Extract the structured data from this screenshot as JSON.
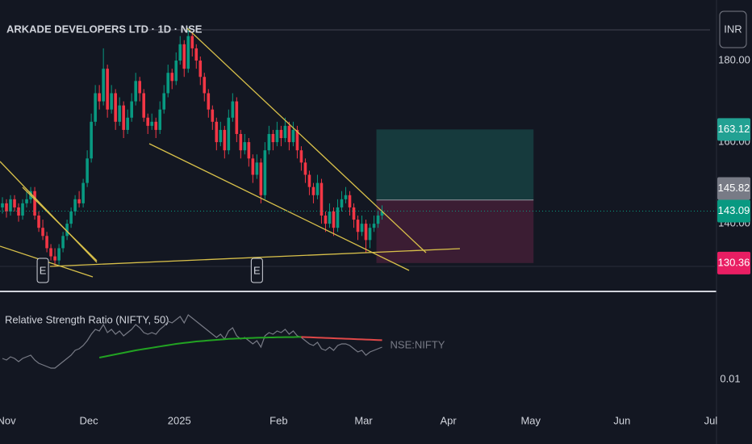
{
  "chart_data": {
    "type": "candlestick",
    "title": "ARKADE DEVELOPERS LTD · 1D · NSE",
    "currency": "INR",
    "up_color": "#089981",
    "down_color": "#f23645",
    "xlim": [
      -0.6,
      176.4
    ],
    "xticks": [
      {
        "value": 1,
        "label": "Nov"
      },
      {
        "value": 21.4,
        "label": "Dec"
      },
      {
        "value": 43.8,
        "label": "2025"
      },
      {
        "value": 68.4,
        "label": "Feb"
      },
      {
        "value": 89.4,
        "label": "Mar"
      },
      {
        "value": 110.4,
        "label": "Apr"
      },
      {
        "value": 130.8,
        "label": "May"
      },
      {
        "value": 153.4,
        "label": "Jun"
      },
      {
        "value": 175.4,
        "label": "Jul"
      }
    ],
    "ylim": [
      123.6,
      194.85
    ],
    "yticks": [
      {
        "value": 180,
        "label": "180.00"
      },
      {
        "value": 160,
        "label": "160.00"
      },
      {
        "value": 140,
        "label": "140.00"
      }
    ],
    "candles": [
      [
        144,
        146.5,
        142.5,
        145
      ],
      [
        145,
        146,
        141.5,
        143
      ],
      [
        143,
        147,
        142,
        146
      ],
      [
        146,
        147,
        143,
        144
      ],
      [
        144,
        145,
        140.5,
        142
      ],
      [
        142,
        146,
        141,
        145
      ],
      [
        145,
        148,
        144,
        146
      ],
      [
        146,
        149,
        145,
        148
      ],
      [
        148,
        149,
        141,
        142
      ],
      [
        142,
        143,
        138,
        139
      ],
      [
        139,
        141,
        136,
        137
      ],
      [
        137,
        138,
        133,
        134
      ],
      [
        134,
        135,
        131,
        132
      ],
      [
        132,
        134,
        129.5,
        131
      ],
      [
        131,
        135,
        130,
        134
      ],
      [
        134,
        138,
        133,
        137
      ],
      [
        137,
        141,
        136,
        140
      ],
      [
        140,
        144,
        139,
        143
      ],
      [
        143,
        147,
        142,
        146
      ],
      [
        146,
        148,
        144,
        145
      ],
      [
        145,
        151,
        144,
        150
      ],
      [
        150,
        158,
        149,
        156
      ],
      [
        156,
        167,
        155,
        165
      ],
      [
        165,
        174,
        164,
        172
      ],
      [
        172,
        174,
        168,
        170
      ],
      [
        170,
        183,
        169,
        178
      ],
      [
        178,
        179,
        166,
        168
      ],
      [
        168,
        174,
        167,
        172
      ],
      [
        172,
        173,
        163,
        165
      ],
      [
        165,
        171,
        164,
        169
      ],
      [
        169,
        170,
        161,
        163
      ],
      [
        163,
        168,
        162,
        166
      ],
      [
        166,
        172,
        165,
        170
      ],
      [
        170,
        177,
        169,
        175
      ],
      [
        175,
        176,
        170,
        172
      ],
      [
        172,
        173,
        165,
        166
      ],
      [
        166,
        167,
        162,
        164
      ],
      [
        164,
        167,
        163,
        165
      ],
      [
        165,
        166,
        161,
        163
      ],
      [
        163,
        170,
        162,
        168
      ],
      [
        168,
        174,
        167,
        172
      ],
      [
        172,
        179,
        171,
        177
      ],
      [
        177,
        178,
        173,
        175
      ],
      [
        175,
        182,
        174,
        180
      ],
      [
        180,
        186,
        179,
        184
      ],
      [
        184,
        185,
        176,
        178
      ],
      [
        178,
        188,
        177,
        186
      ],
      [
        186,
        187,
        181,
        183
      ],
      [
        183,
        184,
        178,
        180
      ],
      [
        180,
        181,
        174,
        176
      ],
      [
        176,
        177,
        170,
        172
      ],
      [
        172,
        173,
        166,
        168
      ],
      [
        168,
        169,
        163,
        165
      ],
      [
        165,
        166,
        158,
        160
      ],
      [
        160,
        165,
        159,
        163
      ],
      [
        163,
        164,
        156,
        158
      ],
      [
        158,
        168,
        157,
        166
      ],
      [
        166,
        172,
        165,
        170
      ],
      [
        170,
        171,
        160,
        162
      ],
      [
        162,
        163,
        156,
        158
      ],
      [
        158,
        162,
        157,
        160
      ],
      [
        160,
        161,
        154,
        156
      ],
      [
        156,
        157,
        150,
        152
      ],
      [
        152,
        157,
        151,
        155
      ],
      [
        155,
        156,
        145,
        147
      ],
      [
        147,
        160,
        146,
        158
      ],
      [
        158,
        164,
        157,
        162
      ],
      [
        162,
        163,
        158,
        160
      ],
      [
        160,
        165,
        159,
        163
      ],
      [
        163,
        164,
        159,
        161
      ],
      [
        161,
        166,
        160,
        164
      ],
      [
        164,
        165,
        158,
        160
      ],
      [
        160,
        165,
        159,
        163
      ],
      [
        163,
        164,
        156,
        158
      ],
      [
        158,
        159,
        153,
        155
      ],
      [
        155,
        156,
        150,
        152
      ],
      [
        152,
        153,
        147,
        149
      ],
      [
        149,
        150,
        145,
        147
      ],
      [
        147,
        152,
        146,
        150
      ],
      [
        150,
        151,
        140,
        142
      ],
      [
        142,
        143,
        138,
        140
      ],
      [
        140,
        145,
        139,
        143
      ],
      [
        143,
        144,
        137,
        139
      ],
      [
        139,
        146,
        138,
        144
      ],
      [
        144,
        148,
        143,
        146
      ],
      [
        146,
        149,
        145,
        147
      ],
      [
        147,
        148,
        142,
        144
      ],
      [
        144,
        145,
        139,
        141
      ],
      [
        141,
        142,
        136,
        138
      ],
      [
        138,
        142,
        137,
        140
      ],
      [
        140,
        141,
        133,
        136
      ],
      [
        136,
        140,
        134,
        139
      ],
      [
        139,
        142,
        138,
        140
      ],
      [
        140,
        143,
        139,
        142
      ],
      [
        142,
        144.5,
        141,
        143.09
      ]
    ],
    "events": [
      {
        "x": 10,
        "label": "E"
      },
      {
        "x": 63,
        "label": "E"
      }
    ],
    "position": {
      "x": [
        92.6,
        131.5
      ],
      "target": 163.12,
      "entry": 145.82,
      "stop": 130.36,
      "profit_color": "#163a3d",
      "loss_color": "#3b1d33",
      "target_color": "#22a193",
      "entry_color": "#787b86",
      "stop_color": "#e91e63"
    },
    "last": 143.09,
    "last_color": "#089981",
    "indicator": {
      "title": "Relative Strength Ratio (NIFTY, 50)",
      "ylim": [
        0.00825,
        0.01525
      ],
      "yticks": [
        0.01
      ],
      "series": [
        {
          "name": "NSE:NIFTY",
          "color": "#787b86",
          "values": [
            0.0113,
            0.0112,
            0.0114,
            0.0113,
            0.0111,
            0.0113,
            0.0114,
            0.0115,
            0.0112,
            0.011,
            0.0109,
            0.0108,
            0.0107,
            0.0107,
            0.0109,
            0.0111,
            0.0113,
            0.0115,
            0.0118,
            0.0119,
            0.0121,
            0.0124,
            0.0128,
            0.0131,
            0.013,
            0.0134,
            0.0129,
            0.0131,
            0.0128,
            0.013,
            0.0127,
            0.0129,
            0.0131,
            0.0134,
            0.0132,
            0.0129,
            0.0128,
            0.0129,
            0.0128,
            0.0131,
            0.0133,
            0.0136,
            0.0135,
            0.0137,
            0.0139,
            0.0135,
            0.014,
            0.0138,
            0.0136,
            0.0134,
            0.0132,
            0.013,
            0.0128,
            0.0126,
            0.0128,
            0.0125,
            0.013,
            0.0132,
            0.0127,
            0.0125,
            0.0126,
            0.0124,
            0.0122,
            0.0124,
            0.012,
            0.0127,
            0.0129,
            0.0128,
            0.013,
            0.0129,
            0.0131,
            0.0128,
            0.013,
            0.0127,
            0.0126,
            0.0124,
            0.0122,
            0.0121,
            0.0123,
            0.0119,
            0.0118,
            0.012,
            0.0118,
            0.0121,
            0.0122,
            0.0122,
            0.0121,
            0.0119,
            0.0117,
            0.0118,
            0.0115,
            0.0117,
            0.0118,
            0.0119,
            0.012
          ]
        }
      ],
      "ma": {
        "up_color": "#22a322",
        "down_color": "#e04848",
        "values": [
          null,
          null,
          null,
          null,
          null,
          null,
          null,
          null,
          null,
          null,
          null,
          null,
          null,
          null,
          null,
          null,
          null,
          null,
          null,
          null,
          null,
          null,
          null,
          null,
          0.01135,
          0.0114,
          0.01145,
          0.0115,
          0.01155,
          0.0116,
          0.01165,
          0.0117,
          0.01175,
          0.0118,
          0.01184,
          0.01188,
          0.01192,
          0.01196,
          0.012,
          0.01204,
          0.01208,
          0.01212,
          0.01216,
          0.0122,
          0.01223,
          0.01226,
          0.01229,
          0.01232,
          0.01235,
          0.01237,
          0.01239,
          0.01241,
          0.01243,
          0.01245,
          0.01247,
          0.01249,
          0.01251,
          0.01252,
          0.01253,
          0.01254,
          0.01255,
          0.01256,
          0.01257,
          0.01258,
          0.01259,
          0.01259,
          0.0126,
          0.0126,
          0.01261,
          0.01261,
          0.01262,
          0.01262,
          0.01262,
          0.01263,
          0.01263,
          0.01262,
          0.01261,
          0.0126,
          0.01259,
          0.01258,
          0.01257,
          0.01256,
          0.01255,
          0.01254,
          0.01253,
          0.01252,
          0.01251,
          0.0125,
          0.01249,
          0.01248,
          0.01247,
          0.01246,
          0.01245,
          0.01244,
          0.01243
        ]
      }
    }
  }
}
